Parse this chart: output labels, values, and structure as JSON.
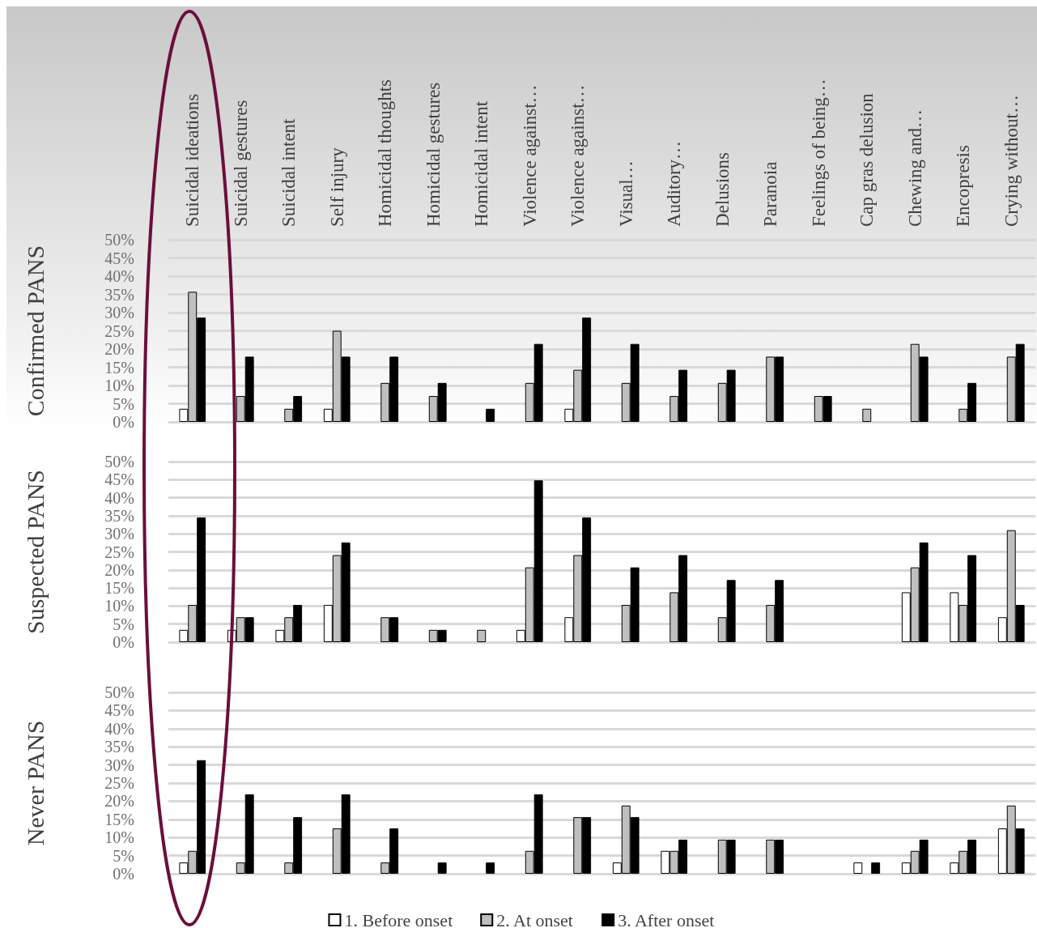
{
  "chart_data": [
    {
      "type": "bar",
      "ylabel": "Confirmed PANS",
      "categories": [
        "Suicidal ideations",
        "Suicidal gestures",
        "Suicidal intent",
        "Self injury",
        "Homicidal thoughts",
        "Homicidal gestures",
        "Homicidal intent",
        "Violence against…",
        "Violence against…",
        "Visual…",
        "Auditory…",
        "Delusions",
        "Paranoia",
        "Feelings of being…",
        "Cap gras delusion",
        "Chewing and…",
        "Encopresis",
        "Crying without…"
      ],
      "series": [
        {
          "color": "#ffffff",
          "values": [
            3.6,
            0,
            0,
            3.6,
            0,
            0,
            0,
            0,
            3.6,
            0,
            0,
            0,
            0,
            0,
            0,
            0,
            0,
            0
          ]
        },
        {
          "color": "#bfbfbf",
          "values": [
            35.7,
            7.1,
            3.6,
            25,
            10.7,
            7.1,
            0,
            10.7,
            14.3,
            10.7,
            7.1,
            10.7,
            17.9,
            7.1,
            3.6,
            21.4,
            3.6,
            17.9
          ]
        },
        {
          "color": "#000000",
          "values": [
            28.6,
            17.9,
            7.1,
            17.9,
            17.9,
            10.7,
            3.6,
            21.4,
            28.6,
            21.4,
            14.3,
            14.3,
            17.9,
            7.1,
            0,
            17.9,
            10.7,
            21.4
          ]
        }
      ],
      "ylim": [
        0,
        50
      ],
      "yticks": [
        {
          "value": 0,
          "label": "0%"
        },
        {
          "value": 5,
          "label": "5%"
        },
        {
          "value": 10,
          "label": "10%"
        },
        {
          "value": 15,
          "label": "15%"
        },
        {
          "value": 20,
          "label": "20%"
        },
        {
          "value": 25,
          "label": "25%"
        },
        {
          "value": 30,
          "label": "30%"
        },
        {
          "value": 35,
          "label": "35%"
        },
        {
          "value": 40,
          "label": "40%"
        },
        {
          "value": 45,
          "label": "45%"
        },
        {
          "value": 50,
          "label": "50%"
        }
      ],
      "grid": "y",
      "legend": false
    },
    {
      "type": "bar",
      "ylabel": "Suspected PANS",
      "categories": [
        null,
        null,
        null,
        null,
        null,
        null,
        null,
        null,
        null,
        null,
        null,
        null,
        null,
        null,
        null,
        null,
        null,
        null
      ],
      "series": [
        {
          "color": "#ffffff",
          "values": [
            3.4,
            3.4,
            3.4,
            10.3,
            0,
            0,
            0,
            3.4,
            6.9,
            0,
            0,
            0,
            0,
            0,
            0,
            13.8,
            13.8,
            6.9
          ]
        },
        {
          "color": "#bfbfbf",
          "values": [
            10.3,
            6.9,
            6.9,
            24.1,
            6.9,
            3.4,
            3.4,
            20.7,
            24.1,
            10.3,
            13.8,
            6.9,
            10.3,
            0,
            0,
            20.7,
            10.3,
            31
          ]
        },
        {
          "color": "#000000",
          "values": [
            34.5,
            6.9,
            10.3,
            27.6,
            6.9,
            3.4,
            0,
            44.8,
            34.5,
            20.7,
            24.1,
            17.2,
            17.2,
            0,
            0,
            27.6,
            24.1,
            10.3
          ]
        }
      ],
      "ylim": [
        0,
        50
      ],
      "yticks": [
        {
          "value": 0,
          "label": "0%"
        },
        {
          "value": 5,
          "label": "5%"
        },
        {
          "value": 10,
          "label": "10%"
        },
        {
          "value": 15,
          "label": "15%"
        },
        {
          "value": 20,
          "label": "20%"
        },
        {
          "value": 25,
          "label": "25%"
        },
        {
          "value": 30,
          "label": "30%"
        },
        {
          "value": 35,
          "label": "35%"
        },
        {
          "value": 40,
          "label": "40%"
        },
        {
          "value": 45,
          "label": "45%"
        },
        {
          "value": 50,
          "label": "50%"
        }
      ],
      "grid": "y",
      "legend": false,
      "tick_labels": "y"
    },
    {
      "type": "bar",
      "ylabel": "Never PANS",
      "categories": [
        null,
        null,
        null,
        null,
        null,
        null,
        null,
        null,
        null,
        null,
        null,
        null,
        null,
        null,
        null,
        null,
        null,
        null
      ],
      "series": [
        {
          "name": "1. Before onset",
          "color": "#ffffff",
          "values": [
            3.1,
            0,
            0,
            0,
            0,
            0,
            0,
            0,
            0,
            3.1,
            6.3,
            0,
            0,
            0,
            3.1,
            3.1,
            3.1,
            12.5
          ]
        },
        {
          "name": "2. At onset",
          "color": "#bfbfbf",
          "values": [
            6.3,
            3.1,
            3.1,
            12.5,
            3.1,
            0,
            0,
            6.3,
            15.6,
            18.8,
            6.3,
            9.4,
            9.4,
            0,
            0,
            6.3,
            6.3,
            18.8
          ]
        },
        {
          "name": "3. After onset",
          "color": "#000000",
          "values": [
            31.3,
            21.9,
            15.6,
            21.9,
            12.5,
            3.1,
            3.1,
            21.9,
            15.6,
            15.6,
            9.4,
            9.4,
            9.4,
            0,
            3.1,
            9.4,
            9.4,
            12.5
          ]
        }
      ],
      "ylim": [
        0,
        50
      ],
      "yticks": [
        {
          "value": 0,
          "label": "0%"
        },
        {
          "value": 5,
          "label": "5%"
        },
        {
          "value": 10,
          "label": "10%"
        },
        {
          "value": 15,
          "label": "15%"
        },
        {
          "value": 20,
          "label": "20%"
        },
        {
          "value": 25,
          "label": "25%"
        },
        {
          "value": 30,
          "label": "30%"
        },
        {
          "value": 35,
          "label": "35%"
        },
        {
          "value": 40,
          "label": "40%"
        },
        {
          "value": 45,
          "label": "45%"
        },
        {
          "value": 50,
          "label": "50%"
        }
      ],
      "grid": "y",
      "legend": "bottom",
      "tick_labels": "y"
    }
  ]
}
